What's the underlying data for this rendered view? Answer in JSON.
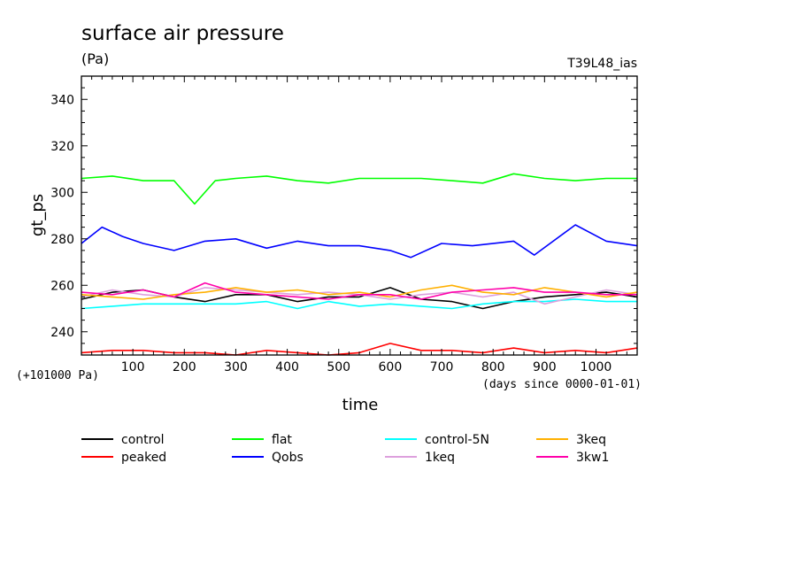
{
  "chart_data": {
    "type": "line",
    "title": "surface air pressure",
    "unit_label": "(Pa)",
    "experiment": "T39L48_ias",
    "ylabel": "gt_ps",
    "xlabel": "time",
    "y_offset_note": "(+101000 Pa)",
    "x_units_note": "(days since 0000-01-01)",
    "xlim": [
      0,
      1080
    ],
    "ylim": [
      230,
      350
    ],
    "x_ticks": [
      100,
      200,
      300,
      400,
      500,
      600,
      700,
      800,
      900,
      1000
    ],
    "y_ticks": [
      240,
      260,
      280,
      300,
      320,
      340
    ],
    "legend_placement": "bottom",
    "grid": false,
    "series": [
      {
        "name": "control",
        "color": "#000000",
        "x": [
          0,
          60,
          120,
          180,
          240,
          300,
          360,
          420,
          480,
          540,
          600,
          660,
          720,
          780,
          840,
          900,
          960,
          1020,
          1080
        ],
        "values": [
          254,
          257,
          258,
          255,
          253,
          256,
          256,
          253,
          255,
          255,
          259,
          254,
          253,
          250,
          253,
          255,
          256,
          257,
          255
        ]
      },
      {
        "name": "peaked",
        "color": "#ff0000",
        "x": [
          0,
          60,
          120,
          180,
          240,
          300,
          360,
          420,
          480,
          540,
          600,
          660,
          720,
          780,
          840,
          900,
          960,
          1020,
          1080
        ],
        "values": [
          231,
          232,
          232,
          231,
          231,
          230,
          232,
          231,
          230,
          231,
          235,
          232,
          232,
          231,
          233,
          231,
          232,
          231,
          233
        ]
      },
      {
        "name": "flat",
        "color": "#00ff00",
        "x": [
          0,
          60,
          120,
          180,
          220,
          260,
          300,
          360,
          420,
          480,
          540,
          600,
          660,
          720,
          780,
          840,
          900,
          960,
          1020,
          1080
        ],
        "values": [
          306,
          307,
          305,
          305,
          295,
          305,
          306,
          307,
          305,
          304,
          306,
          306,
          306,
          305,
          304,
          308,
          306,
          305,
          306,
          306
        ]
      },
      {
        "name": "Qobs",
        "color": "#0000ff",
        "x": [
          0,
          40,
          80,
          120,
          180,
          240,
          300,
          360,
          420,
          480,
          540,
          600,
          640,
          700,
          760,
          840,
          880,
          960,
          1020,
          1080
        ],
        "values": [
          278,
          285,
          281,
          278,
          275,
          279,
          280,
          276,
          279,
          277,
          277,
          275,
          272,
          278,
          277,
          279,
          273,
          286,
          279,
          277
        ]
      },
      {
        "name": "control-5N",
        "color": "#00ffff",
        "x": [
          0,
          60,
          120,
          180,
          240,
          300,
          360,
          420,
          480,
          540,
          600,
          660,
          720,
          780,
          840,
          900,
          960,
          1020,
          1080
        ],
        "values": [
          250,
          251,
          252,
          252,
          252,
          252,
          253,
          250,
          253,
          251,
          252,
          251,
          250,
          252,
          253,
          253,
          254,
          253,
          253
        ]
      },
      {
        "name": "1keq",
        "color": "#dda0dd",
        "x": [
          0,
          60,
          120,
          180,
          240,
          300,
          360,
          420,
          480,
          540,
          600,
          660,
          720,
          780,
          840,
          900,
          960,
          1020,
          1080
        ],
        "values": [
          255,
          258,
          256,
          255,
          259,
          258,
          257,
          256,
          257,
          256,
          254,
          256,
          257,
          255,
          257,
          252,
          255,
          258,
          256
        ]
      },
      {
        "name": "3keq",
        "color": "#ffb000",
        "x": [
          0,
          60,
          120,
          180,
          240,
          300,
          360,
          420,
          480,
          540,
          600,
          660,
          720,
          780,
          840,
          900,
          960,
          1020,
          1080
        ],
        "values": [
          256,
          255,
          254,
          256,
          257,
          259,
          257,
          258,
          256,
          257,
          255,
          258,
          260,
          257,
          256,
          259,
          257,
          255,
          257
        ]
      },
      {
        "name": "3kw1",
        "color": "#ff00aa",
        "x": [
          0,
          60,
          120,
          180,
          240,
          300,
          360,
          420,
          480,
          540,
          600,
          660,
          720,
          780,
          840,
          900,
          960,
          1020,
          1080
        ],
        "values": [
          257,
          256,
          258,
          255,
          261,
          257,
          256,
          255,
          254,
          256,
          256,
          254,
          257,
          258,
          259,
          257,
          257,
          256,
          256
        ]
      }
    ]
  }
}
